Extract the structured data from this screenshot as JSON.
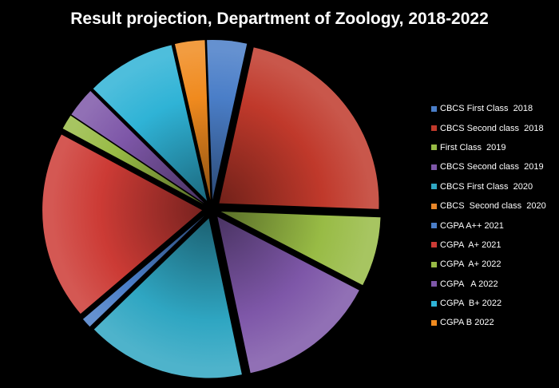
{
  "chart_data": {
    "type": "pie",
    "title": "Result projection, Department of Zoology, 2018-2022",
    "exploded": true,
    "legend_position": "right",
    "slices": [
      {
        "label": "CBCS First Class  2018",
        "value": 4,
        "color": "#4a7ec8"
      },
      {
        "label": "CBCS Second class  2018",
        "value": 22,
        "color": "#c0392b"
      },
      {
        "label": "First Class  2019",
        "value": 7,
        "color": "#98bb45"
      },
      {
        "label": "CBCS Second class  2019",
        "value": 14,
        "color": "#7e57a8"
      },
      {
        "label": "CBCS First Class  2020",
        "value": 16,
        "color": "#2fa6c2"
      },
      {
        "label": "CBCS  Second class  2020",
        "value": 0.001,
        "color": "#e8862a"
      },
      {
        "label": "CGPA A++ 2021",
        "value": 1,
        "color": "#4a7ec8"
      },
      {
        "label": "CGPA  A+ 2021",
        "value": 19,
        "color": "#cc3b35"
      },
      {
        "label": "CGPA  A+ 2022",
        "value": 1.5,
        "color": "#98bb45"
      },
      {
        "label": "CGPA   A 2022",
        "value": 3,
        "color": "#7e57a8"
      },
      {
        "label": "CGPA  B+ 2022",
        "value": 9,
        "color": "#2fb3d6"
      },
      {
        "label": "CGPA B 2022",
        "value": 3,
        "color": "#f08a1e"
      }
    ]
  }
}
